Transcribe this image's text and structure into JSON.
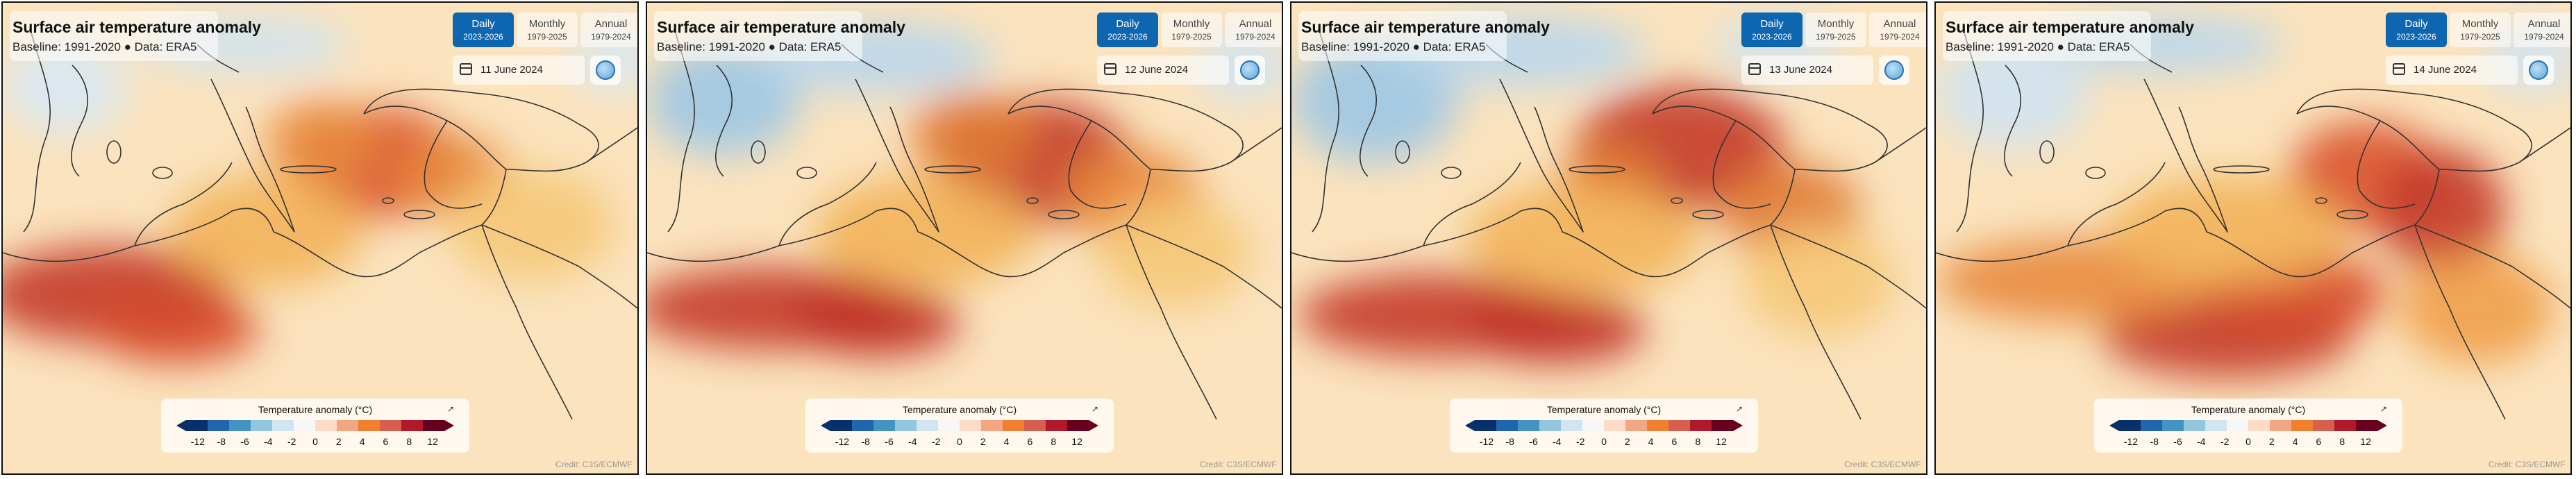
{
  "title": "Surface air temperature anomaly",
  "subtitle": "Baseline: 1991-2020 ● Data: ERA5",
  "tabs": [
    {
      "label": "Daily",
      "range": "2023-2026",
      "active": true
    },
    {
      "label": "Monthly",
      "range": "1979-2025",
      "active": false
    },
    {
      "label": "Annual",
      "range": "1979-2024",
      "active": false
    }
  ],
  "panels": [
    {
      "date": "11 June 2024"
    },
    {
      "date": "12 June 2024"
    },
    {
      "date": "13 June 2024"
    },
    {
      "date": "14 June 2024"
    }
  ],
  "legend": {
    "title": "Temperature anomaly (°C)",
    "ticks": [
      "-12",
      "-8",
      "-6",
      "-4",
      "-2",
      "0",
      "2",
      "4",
      "6",
      "8",
      "12"
    ],
    "colors": [
      "#08306b",
      "#2166ac",
      "#4393c3",
      "#92c5de",
      "#d1e5f0",
      "#f7f7f7",
      "#fddbc7",
      "#f4a582",
      "#f08030",
      "#d6604d",
      "#b2182b",
      "#67001f"
    ]
  },
  "credit": "Credit: C3S/ECMWF",
  "icons": {
    "calendar": "calendar-icon",
    "globe": "globe-icon",
    "resize": "resize-icon"
  }
}
